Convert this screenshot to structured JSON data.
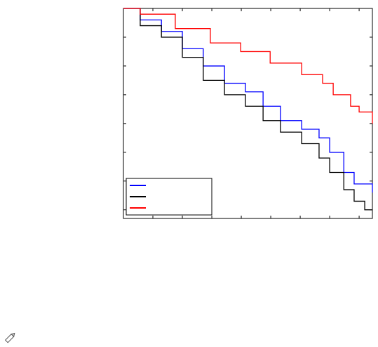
{
  "chart_data": {
    "type": "step",
    "xlim": [
      0,
      8.45
    ],
    "xticks": [
      1,
      2,
      3,
      4,
      5,
      6,
      7,
      8
    ],
    "ylim": [
      0.27,
      1.0
    ],
    "yticks": [
      0.3,
      0.4,
      0.5,
      0.6,
      0.7,
      0.8,
      0.9
    ],
    "legend": "lower left",
    "series": [
      {
        "color": "#0000ff",
        "x": [
          0,
          0.57,
          1.29,
          2.0,
          2.71,
          3.43,
          4.14,
          4.74,
          5.33,
          6.05,
          6.64,
          7.0,
          7.48,
          7.83,
          8.45
        ],
        "values": [
          1,
          0.96,
          0.92,
          0.86,
          0.8,
          0.74,
          0.71,
          0.66,
          0.61,
          0.58,
          0.55,
          0.5,
          0.43,
          0.39,
          0.36
        ]
      },
      {
        "color": "#000000",
        "x": [
          0,
          0.57,
          1.29,
          2.0,
          2.71,
          3.43,
          4.14,
          4.74,
          5.33,
          6.05,
          6.64,
          7.0,
          7.48,
          7.83,
          8.19,
          8.45
        ],
        "values": [
          1,
          0.94,
          0.9,
          0.83,
          0.75,
          0.7,
          0.66,
          0.61,
          0.57,
          0.53,
          0.48,
          0.43,
          0.37,
          0.33,
          0.3,
          0.3
        ]
      },
      {
        "color": "#ff0000",
        "x": [
          0,
          0.57,
          1.76,
          2.95,
          3.98,
          4.98,
          6.05,
          6.76,
          7.12,
          7.71,
          8.0,
          8.45
        ],
        "values": [
          1,
          0.98,
          0.93,
          0.88,
          0.85,
          0.81,
          0.77,
          0.74,
          0.7,
          0.66,
          0.64,
          0.6
        ]
      }
    ]
  }
}
